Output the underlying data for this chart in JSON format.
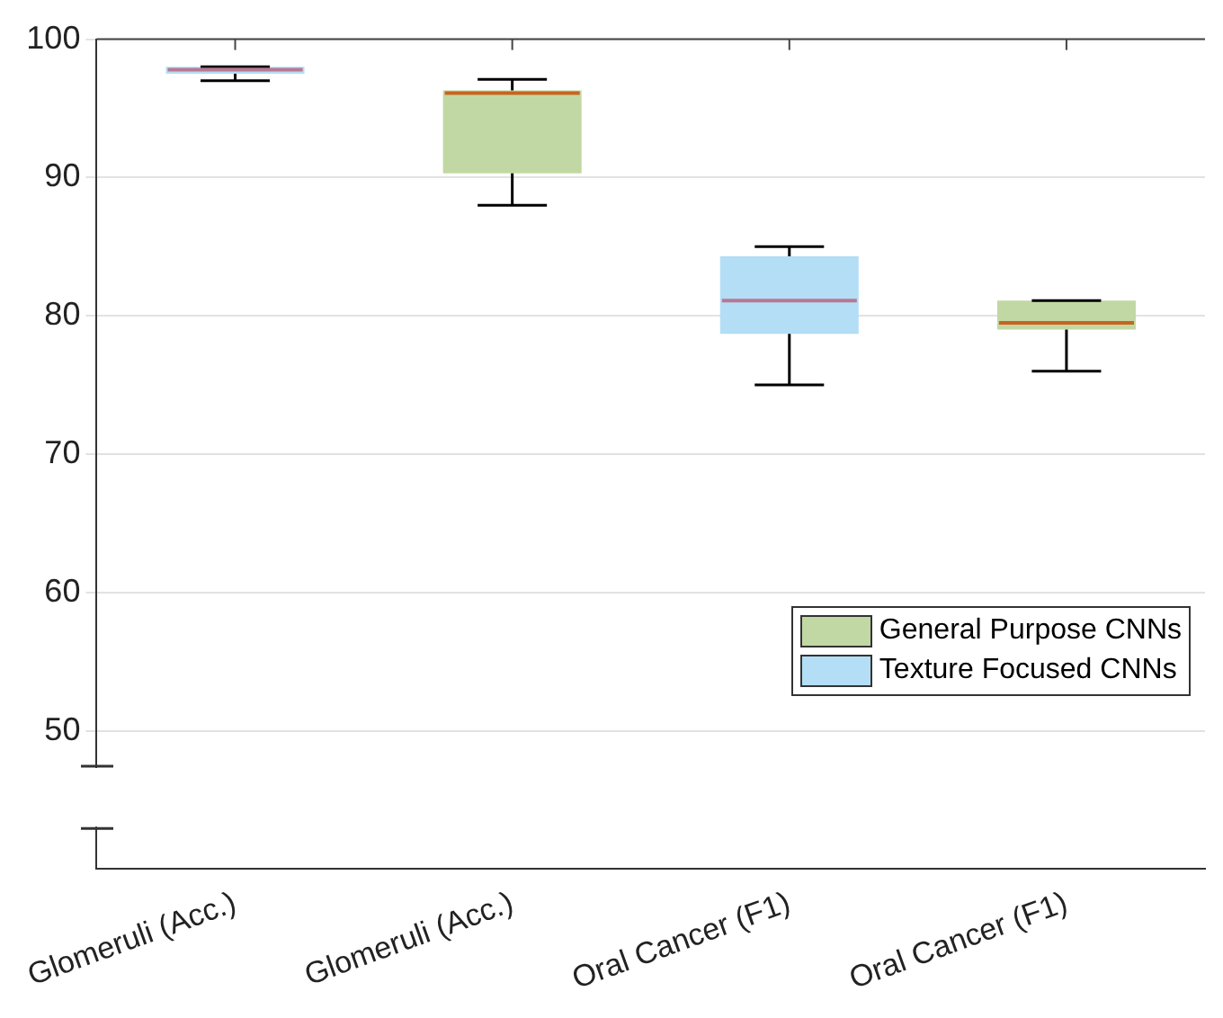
{
  "chart_data": {
    "type": "box",
    "categories": [
      "Glomeruli (Acc.)",
      "Glomeruli (Acc.)",
      "Oral Cancer (F1)",
      "Oral Cancer (F1)"
    ],
    "series": [
      {
        "name": "General Purpose CNNs",
        "color": "#c2d8a4",
        "boxes": [
          null,
          {
            "low": 88,
            "q1": 90.3,
            "median": 96.1,
            "q3": 96.3,
            "high": 97.1
          },
          null,
          {
            "low": 76,
            "q1": 79,
            "median": 79.5,
            "q3": 81.1,
            "high": 81.1
          }
        ]
      },
      {
        "name": "Texture Focused CNNs",
        "color": "#b3def5",
        "boxes": [
          {
            "low": 97,
            "q1": 97.5,
            "median": 97.8,
            "q3": 98,
            "high": 98
          },
          null,
          {
            "low": 75,
            "q1": 78.7,
            "median": 81.1,
            "q3": 84.3,
            "high": 85
          },
          null
        ]
      }
    ],
    "ylim": [
      40,
      100
    ],
    "yticks": [
      50,
      60,
      70,
      80,
      90,
      100
    ],
    "grid": "y",
    "legend": "bottom right"
  }
}
